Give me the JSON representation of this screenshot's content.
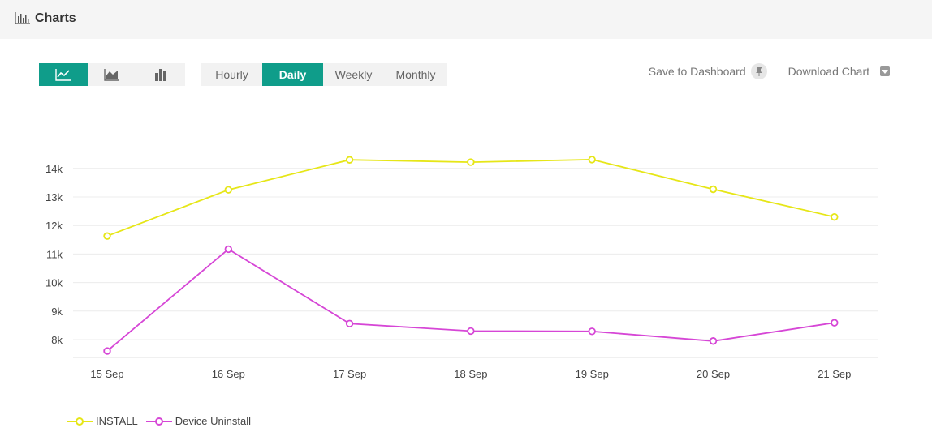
{
  "header": {
    "title": "Charts",
    "icon": "bar-chart-icon"
  },
  "chart_types": [
    {
      "name": "line-chart-icon",
      "active": true
    },
    {
      "name": "area-chart-icon",
      "active": false
    },
    {
      "name": "bar-chart-icon",
      "active": false
    }
  ],
  "granularity": {
    "options": [
      "Hourly",
      "Daily",
      "Weekly",
      "Monthly"
    ],
    "selected": "Daily"
  },
  "actions": {
    "save_label": "Save to Dashboard",
    "download_label": "Download Chart"
  },
  "colors": {
    "accent": "#0f9d8a",
    "install": "#e6e617",
    "uninstall": "#d646d6"
  },
  "chart_data": {
    "type": "line",
    "categories": [
      "15 Sep",
      "16 Sep",
      "17 Sep",
      "18 Sep",
      "19 Sep",
      "20 Sep",
      "21 Sep"
    ],
    "series": [
      {
        "name": "INSTALL",
        "values": [
          11630,
          13250,
          14300,
          14220,
          14310,
          13270,
          12300
        ]
      },
      {
        "name": "Device Uninstall",
        "values": [
          7600,
          11170,
          8560,
          8300,
          8290,
          7950,
          8590
        ]
      }
    ],
    "yticks": [
      "8k",
      "9k",
      "10k",
      "11k",
      "12k",
      "13k",
      "14k"
    ],
    "ytick_values": [
      8000,
      9000,
      10000,
      11000,
      12000,
      13000,
      14000
    ],
    "grid": true,
    "legend_position": "bottom-left"
  }
}
